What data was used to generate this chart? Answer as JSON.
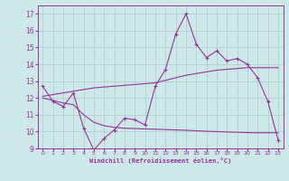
{
  "xlabel": "Windchill (Refroidissement éolien,°C)",
  "x_values": [
    0,
    1,
    2,
    3,
    4,
    5,
    6,
    7,
    8,
    9,
    10,
    11,
    12,
    13,
    14,
    15,
    16,
    17,
    18,
    19,
    20,
    21,
    22,
    23
  ],
  "line1_y": [
    12.7,
    11.8,
    11.5,
    12.3,
    10.2,
    8.9,
    9.6,
    10.1,
    10.8,
    10.7,
    10.4,
    12.7,
    13.7,
    15.8,
    17.0,
    15.2,
    14.4,
    14.8,
    14.2,
    14.35,
    14.0,
    13.2,
    11.8,
    9.5
  ],
  "trend_upper": [
    12.1,
    12.2,
    12.3,
    12.4,
    12.5,
    12.6,
    12.65,
    12.7,
    12.75,
    12.8,
    12.85,
    12.9,
    13.05,
    13.2,
    13.35,
    13.45,
    13.55,
    13.65,
    13.7,
    13.75,
    13.8,
    13.8,
    13.8,
    13.8
  ],
  "trend_lower": [
    12.0,
    11.85,
    11.7,
    11.6,
    11.0,
    10.55,
    10.35,
    10.25,
    10.2,
    10.18,
    10.16,
    10.14,
    10.12,
    10.1,
    10.08,
    10.05,
    10.02,
    10.0,
    9.98,
    9.96,
    9.94,
    9.93,
    9.93,
    9.93
  ],
  "line_color": "#993399",
  "bg_color": "#cce8e8",
  "grid_color": "#aacccc",
  "ylim": [
    9,
    17.5
  ],
  "xlim": [
    -0.5,
    23.5
  ],
  "yticks": [
    9,
    10,
    11,
    12,
    13,
    14,
    15,
    16,
    17
  ],
  "xticks": [
    0,
    1,
    2,
    3,
    4,
    5,
    6,
    7,
    8,
    9,
    10,
    11,
    12,
    13,
    14,
    15,
    16,
    17,
    18,
    19,
    20,
    21,
    22,
    23
  ]
}
